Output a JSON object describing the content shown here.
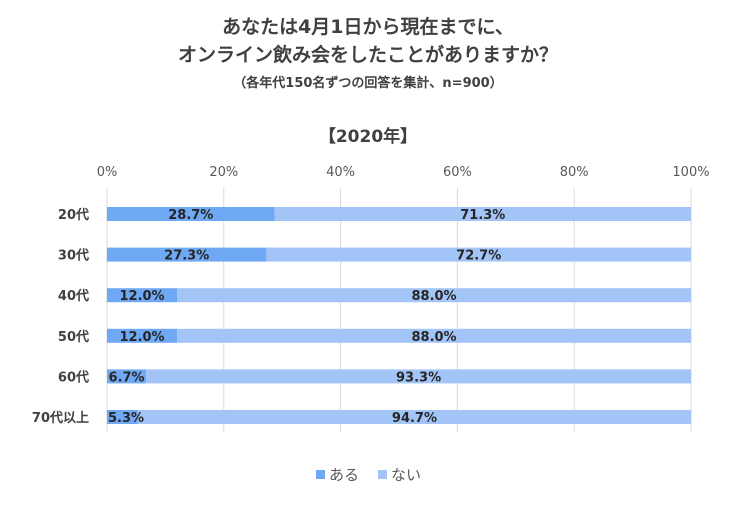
{
  "header": {
    "title_line1": "あなたは4月1日から現在までに、",
    "title_line2": "オンライン飲み会をしたことがありますか？",
    "note": "（各年代150名ずつの回答を集計、n=900）",
    "subtitle": "【2020年】"
  },
  "colors": {
    "aru": "#6fa8f5",
    "nai": "#a3c4f7",
    "grid": "#d9d9d9"
  },
  "chart_data": {
    "type": "bar",
    "orientation": "horizontal",
    "stacked": "percent",
    "categories": [
      "20代",
      "30代",
      "40代",
      "50代",
      "60代",
      "70代以上"
    ],
    "series": [
      {
        "name": "ある",
        "values": [
          28.7,
          27.3,
          12.0,
          12.0,
          6.7,
          5.3
        ],
        "labels": [
          "28.7%",
          "27.3%",
          "12.0%",
          "12.0%",
          "6.7%",
          "5.3%"
        ]
      },
      {
        "name": "ない",
        "values": [
          71.3,
          72.7,
          88.0,
          88.0,
          93.3,
          94.7
        ],
        "labels": [
          "71.3%",
          "72.7%",
          "88.0%",
          "88.0%",
          "93.3%",
          "94.7%"
        ]
      }
    ],
    "xticks": [
      "0%",
      "20%",
      "40%",
      "60%",
      "80%",
      "100%"
    ],
    "xlim": [
      0,
      100
    ],
    "grid": true,
    "legend": "bottom"
  }
}
